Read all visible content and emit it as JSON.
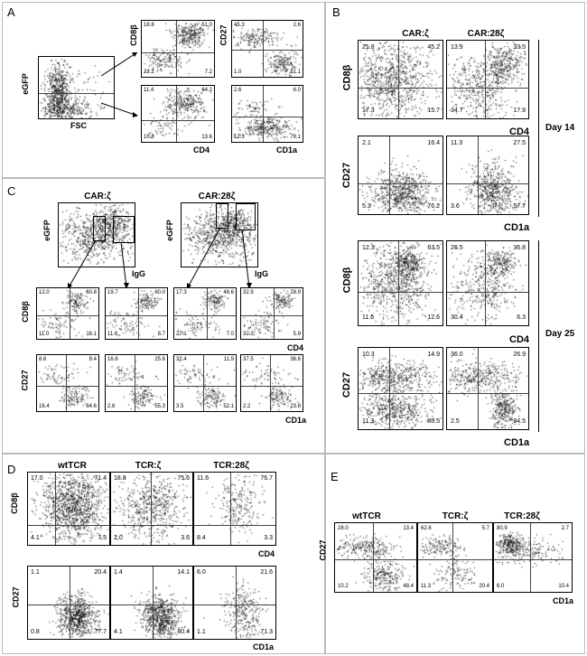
{
  "panels": {
    "A": {
      "letter": "A",
      "source_plot": {
        "xlabel": "FSC",
        "ylabel": "eGFP"
      },
      "plots": [
        {
          "ylabel": "CD8β",
          "q": [
            "18.8",
            "51.0",
            "22.2",
            "7.2"
          ]
        },
        {
          "ylabel": "CD27",
          "q": [
            "45.3",
            "2.6",
            "1.0",
            "51.1"
          ]
        },
        {
          "q": [
            "11.4",
            "64.2",
            "10.8",
            "13.6"
          ],
          "xlabel": "CD4"
        },
        {
          "q": [
            "2.6",
            "6.0",
            "12.3",
            "79.1"
          ],
          "xlabel": "CD1a"
        }
      ]
    },
    "B": {
      "letter": "B",
      "columns": [
        "CAR:ζ",
        "CAR:28ζ"
      ],
      "days": [
        "Day 14",
        "Day 25"
      ],
      "rows": [
        {
          "ylabel": "CD8β",
          "xlabel": "CD4",
          "q": [
            [
              "21.8",
              "45.2",
              "17.3",
              "15.7"
            ],
            [
              "13.9",
              "33.5",
              "34.7",
              "17.9"
            ]
          ]
        },
        {
          "ylabel": "CD27",
          "xlabel": "CD1a",
          "q": [
            [
              "2.1",
              "16.4",
              "5.3",
              "76.2"
            ],
            [
              "11.3",
              "27.5",
              "3.6",
              "57.7"
            ]
          ]
        },
        {
          "ylabel": "CD8β",
          "xlabel": "CD4",
          "q": [
            [
              "12.3",
              "63.5",
              "11.6",
              "12.6"
            ],
            [
              "26.5",
              "36.8",
              "30.4",
              "6.3"
            ]
          ]
        },
        {
          "ylabel": "CD27",
          "xlabel": "CD1a",
          "q": [
            [
              "10.3",
              "14.9",
              "11.3",
              "63.5"
            ],
            [
              "36.0",
              "26.9",
              "2.5",
              "34.5"
            ]
          ]
        }
      ]
    },
    "C": {
      "letter": "C",
      "columns": [
        "CAR:ζ",
        "CAR:28ζ"
      ],
      "source_plot": {
        "xlabel": "IgG",
        "ylabel": "eGFP"
      },
      "rows": [
        {
          "ylabel": "CD8β",
          "xlabel": "CD4",
          "q": [
            [
              "12.0",
              "60.8",
              "11.0",
              "16.1"
            ],
            [
              "19.7",
              "60.0",
              "11.6",
              "8.7"
            ],
            [
              "17.3",
              "48.6",
              "27.1",
              "7.0"
            ],
            [
              "32.9",
              "28.9",
              "32.3",
              "5.9"
            ]
          ]
        },
        {
          "ylabel": "CD27",
          "xlabel": "CD1a",
          "q": [
            [
              "8.6",
              "9.4",
              "16.4",
              "64.6"
            ],
            [
              "16.6",
              "25.6",
              "2.6",
              "55.3"
            ],
            [
              "32.4",
              "11.9",
              "3.5",
              "52.1"
            ],
            [
              "37.5",
              "36.6",
              "2.2",
              "23.8"
            ]
          ]
        }
      ]
    },
    "D": {
      "letter": "D",
      "columns": [
        "wtTCR",
        "TCR:ζ",
        "TCR:28ζ"
      ],
      "rows": [
        {
          "ylabel": "CD8β",
          "xlabel": "CD4",
          "q": [
            [
              "17.0",
              "71.4",
              "4.1",
              "7.5"
            ],
            [
              "18.8",
              "75.6",
              "2.0",
              "3.6"
            ],
            [
              "11.6",
              "76.7",
              "8.4",
              "3.3"
            ]
          ]
        },
        {
          "ylabel": "CD27",
          "xlabel": "CD1a",
          "q": [
            [
              "1.1",
              "20.4",
              "0.8",
              "77.7"
            ],
            [
              "1.4",
              "14.1",
              "4.1",
              "80.4"
            ],
            [
              "6.0",
              "21.6",
              "1.1",
              "71.3"
            ]
          ]
        }
      ]
    },
    "E": {
      "letter": "E",
      "columns": [
        "wtTCR",
        "TCR:ζ",
        "TCR:28ζ"
      ],
      "rows": [
        {
          "ylabel": "CD27",
          "xlabel": "CD1a",
          "q": [
            [
              "28.0",
              "13.4",
              "10.2",
              "48.4"
            ],
            [
              "62.6",
              "5.7",
              "11.3",
              "20.4"
            ],
            [
              "80.9",
              "2.7",
              "6.0",
              "10.4"
            ]
          ]
        }
      ]
    }
  }
}
